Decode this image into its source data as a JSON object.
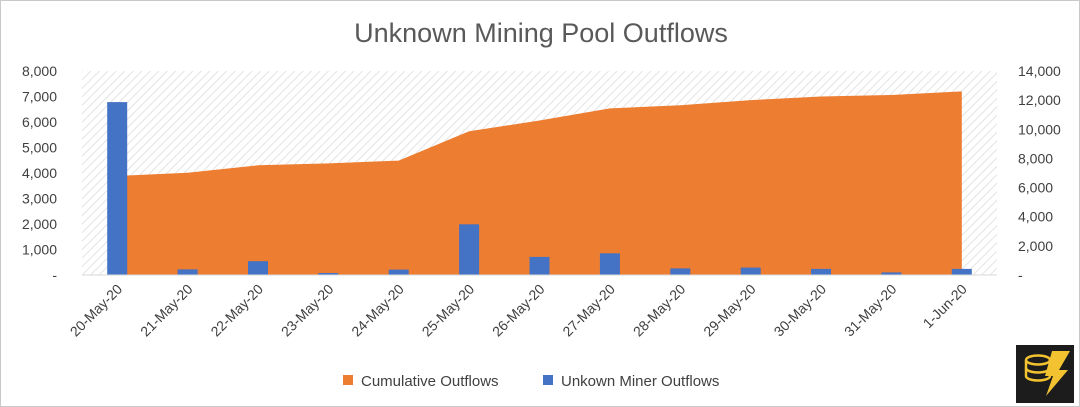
{
  "chart_data": {
    "type": "bar+area",
    "title": "Unknown Mining Pool Outflows",
    "categories": [
      "20-May-20",
      "21-May-20",
      "22-May-20",
      "23-May-20",
      "24-May-20",
      "25-May-20",
      "26-May-20",
      "27-May-20",
      "28-May-20",
      "29-May-20",
      "30-May-20",
      "31-May-20",
      "1-Jun-20"
    ],
    "series": [
      {
        "name": "Cumulative Outflows",
        "type": "area",
        "axis": "right",
        "color": "#ED7D31",
        "values": [
          6800,
          7020,
          7530,
          7660,
          7850,
          9860,
          10600,
          11430,
          11650,
          12000,
          12250,
          12350,
          12600
        ]
      },
      {
        "name": "Unkown Miner Outflows",
        "type": "bar",
        "axis": "left",
        "color": "#4472C4",
        "values": [
          6780,
          220,
          540,
          80,
          210,
          1990,
          710,
          850,
          260,
          290,
          240,
          100,
          240
        ]
      }
    ],
    "left_axis": {
      "min": 0,
      "max": 8000,
      "step": 1000,
      "tick_labels": [
        "-",
        "1,000",
        "2,000",
        "3,000",
        "4,000",
        "5,000",
        "6,000",
        "7,000",
        "8,000"
      ]
    },
    "right_axis": {
      "min": 0,
      "max": 14000,
      "step": 2000,
      "tick_labels": [
        "-",
        "2,000",
        "4,000",
        "6,000",
        "8,000",
        "10,000",
        "12,000",
        "14,000"
      ]
    },
    "legend_position": "bottom",
    "logo_icon": "coin-lightning-logo-icon"
  }
}
